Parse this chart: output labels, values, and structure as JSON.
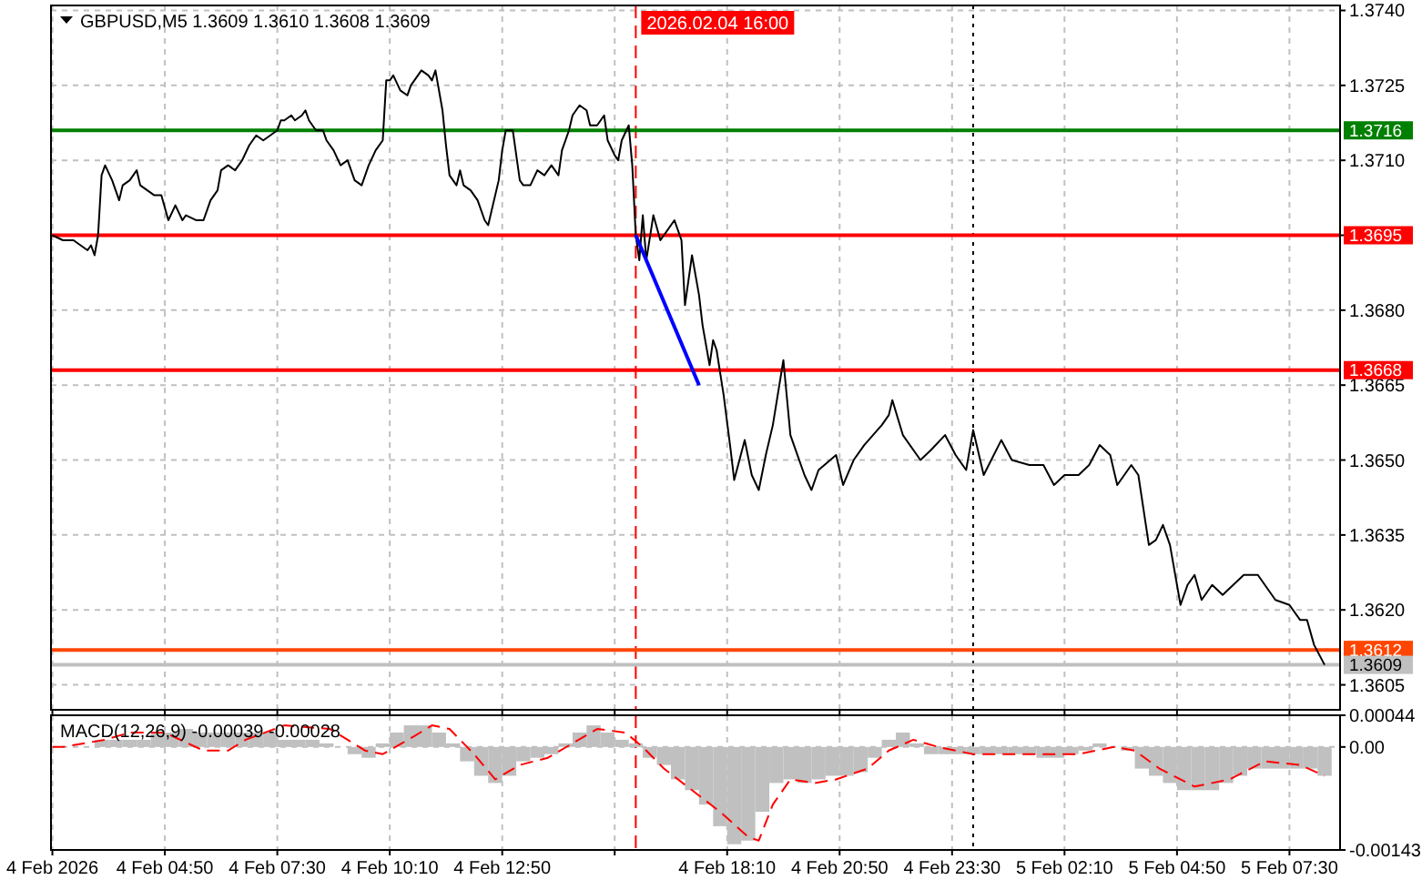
{
  "chart_data": [
    {
      "type": "line",
      "title": "GBPUSD,M5  1.3609 1.3610 1.3608 1.3609",
      "xlim": [
        "2026-02-04T02:08",
        "2026-02-05T08:42"
      ],
      "ylim": [
        1.36,
        1.3741
      ],
      "xticks": [
        {
          "value": "2026-02-04T02:10",
          "label": null
        },
        {
          "value": "2026-02-04T04:50",
          "label": null
        },
        {
          "value": "2026-02-04T07:30",
          "label": null
        },
        {
          "value": "2026-02-04T10:10",
          "label": null
        },
        {
          "value": "2026-02-04T12:50",
          "label": null
        },
        {
          "value": "2026-02-04T15:30",
          "label": null
        },
        {
          "value": "2026-02-04T18:10",
          "label": null
        },
        {
          "value": "2026-02-04T20:50",
          "label": null
        },
        {
          "value": "2026-02-04T23:30",
          "label": null
        },
        {
          "value": "2026-02-05T02:10",
          "label": null
        },
        {
          "value": "2026-02-05T04:50",
          "label": null
        },
        {
          "value": "2026-02-05T07:30",
          "label": null
        }
      ],
      "yticks": [
        1.3605,
        {
          "value": 1.362,
          "label": "1.3620"
        },
        1.3635,
        {
          "value": 1.365,
          "label": "1.3650"
        },
        1.3665,
        {
          "value": 1.368,
          "label": "1.3680"
        },
        {
          "value": 1.3695,
          "label": null
        },
        {
          "value": 1.371,
          "label": "1.3710"
        },
        1.3725,
        {
          "value": 1.374,
          "label": "1.3740"
        }
      ],
      "grid": true,
      "tick_labels": "y",
      "line_style": "solid",
      "series": [
        {
          "color": "#000000",
          "x": [
            "2026-02-04T02:10",
            "2026-02-04T02:25",
            "2026-02-04T02:40",
            "2026-02-04T02:50",
            "2026-02-04T03:00",
            "2026-02-04T03:05",
            "2026-02-04T03:10",
            "2026-02-04T03:15",
            "2026-02-04T03:20",
            "2026-02-04T03:25",
            "2026-02-04T03:35",
            "2026-02-04T03:45",
            "2026-02-04T03:50",
            "2026-02-04T04:00",
            "2026-02-04T04:10",
            "2026-02-04T04:15",
            "2026-02-04T04:25",
            "2026-02-04T04:35",
            "2026-02-04T04:45",
            "2026-02-04T04:55",
            "2026-02-04T05:05",
            "2026-02-04T05:15",
            "2026-02-04T05:20",
            "2026-02-04T05:35",
            "2026-02-04T05:45",
            "2026-02-04T05:55",
            "2026-02-04T06:05",
            "2026-02-04T06:10",
            "2026-02-04T06:20",
            "2026-02-04T06:30",
            "2026-02-04T06:40",
            "2026-02-04T06:50",
            "2026-02-04T07:00",
            "2026-02-04T07:10",
            "2026-02-04T07:20",
            "2026-02-04T07:30",
            "2026-02-04T07:35",
            "2026-02-04T07:40",
            "2026-02-04T07:50",
            "2026-02-04T07:55",
            "2026-02-04T08:05",
            "2026-02-04T08:10",
            "2026-02-04T08:15",
            "2026-02-04T08:25",
            "2026-02-04T08:35",
            "2026-02-04T08:40",
            "2026-02-04T08:50",
            "2026-02-04T09:00",
            "2026-02-04T09:10",
            "2026-02-04T09:20",
            "2026-02-04T09:30",
            "2026-02-04T09:40",
            "2026-02-04T09:50",
            "2026-02-04T10:00",
            "2026-02-04T10:05",
            "2026-02-04T10:10",
            "2026-02-04T10:15",
            "2026-02-04T10:25",
            "2026-02-04T10:35",
            "2026-02-04T10:40",
            "2026-02-04T10:50",
            "2026-02-04T10:55",
            "2026-02-04T11:05",
            "2026-02-04T11:10",
            "2026-02-04T11:15",
            "2026-02-04T11:25",
            "2026-02-04T11:30",
            "2026-02-04T11:35",
            "2026-02-04T11:45",
            "2026-02-04T11:50",
            "2026-02-04T11:55",
            "2026-02-04T12:05",
            "2026-02-04T12:15",
            "2026-02-04T12:25",
            "2026-02-04T12:30",
            "2026-02-04T12:35",
            "2026-02-04T12:45",
            "2026-02-04T12:50",
            "2026-02-04T12:55",
            "2026-02-04T13:05",
            "2026-02-04T13:10",
            "2026-02-04T13:15",
            "2026-02-04T13:20",
            "2026-02-04T13:30",
            "2026-02-04T13:40",
            "2026-02-04T13:50",
            "2026-02-04T14:00",
            "2026-02-04T14:10",
            "2026-02-04T14:15",
            "2026-02-04T14:25",
            "2026-02-04T14:30",
            "2026-02-04T14:40",
            "2026-02-04T14:50",
            "2026-02-04T14:55",
            "2026-02-04T15:05",
            "2026-02-04T15:15",
            "2026-02-04T15:20",
            "2026-02-04T15:30",
            "2026-02-04T15:35",
            "2026-02-04T15:40",
            "2026-02-04T15:50",
            "2026-02-04T15:55",
            "2026-02-04T16:00",
            "2026-02-04T16:05",
            "2026-02-04T16:10",
            "2026-02-04T16:15",
            "2026-02-04T16:25",
            "2026-02-04T16:35",
            "2026-02-04T16:40",
            "2026-02-04T16:55",
            "2026-02-04T17:05",
            "2026-02-04T17:10",
            "2026-02-04T17:20",
            "2026-02-04T17:30",
            "2026-02-04T17:35",
            "2026-02-04T17:45",
            "2026-02-04T17:50",
            "2026-02-04T17:55",
            "2026-02-04T18:05",
            "2026-02-04T18:15",
            "2026-02-04T18:20",
            "2026-02-04T18:35",
            "2026-02-04T18:45",
            "2026-02-04T18:55",
            "2026-02-04T19:05",
            "2026-02-04T19:15",
            "2026-02-04T19:30",
            "2026-02-04T19:40",
            "2026-02-04T20:00",
            "2026-02-04T20:10",
            "2026-02-04T20:20",
            "2026-02-04T20:45",
            "2026-02-04T20:55",
            "2026-02-04T21:10",
            "2026-02-04T21:25",
            "2026-02-04T21:50",
            "2026-02-04T22:00",
            "2026-02-04T22:05",
            "2026-02-04T22:20",
            "2026-02-04T22:45",
            "2026-02-04T23:00",
            "2026-02-04T23:20",
            "2026-02-04T23:35",
            "2026-02-04T23:50",
            "2026-02-05T00:00",
            "2026-02-05T00:15",
            "2026-02-05T00:40",
            "2026-02-05T00:55",
            "2026-02-05T01:20",
            "2026-02-05T01:40",
            "2026-02-05T01:55",
            "2026-02-05T02:10",
            "2026-02-05T02:30",
            "2026-02-05T02:45",
            "2026-02-05T03:00",
            "2026-02-05T03:15",
            "2026-02-05T03:25",
            "2026-02-05T03:45",
            "2026-02-05T03:55",
            "2026-02-05T04:10",
            "2026-02-05T04:20",
            "2026-02-05T04:30",
            "2026-02-05T04:40",
            "2026-02-05T04:55",
            "2026-02-05T05:05",
            "2026-02-05T05:15",
            "2026-02-05T05:25",
            "2026-02-05T05:40",
            "2026-02-05T05:55",
            "2026-02-05T06:25",
            "2026-02-05T06:45",
            "2026-02-05T07:10",
            "2026-02-05T07:30",
            "2026-02-05T07:45",
            "2026-02-05T07:55",
            "2026-02-05T08:05",
            "2026-02-05T08:20"
          ],
          "values": [
            1.3695,
            1.3694,
            1.3694,
            1.3693,
            1.3692,
            1.3693,
            1.3691,
            1.3695,
            1.3707,
            1.3709,
            1.3706,
            1.3702,
            1.3705,
            1.3706,
            1.3708,
            1.3705,
            1.3704,
            1.3703,
            1.3703,
            1.3698,
            1.3701,
            1.3698,
            1.3699,
            1.3698,
            1.3698,
            1.3702,
            1.3704,
            1.3708,
            1.3709,
            1.3708,
            1.371,
            1.3713,
            1.3715,
            1.3714,
            1.3715,
            1.3716,
            1.3718,
            1.3718,
            1.3719,
            1.3718,
            1.3719,
            1.372,
            1.3718,
            1.3716,
            1.3716,
            1.3714,
            1.3712,
            1.3709,
            1.371,
            1.3706,
            1.3705,
            1.3709,
            1.3712,
            1.3714,
            1.3726,
            1.3726,
            1.3727,
            1.3724,
            1.3723,
            1.3725,
            1.3727,
            1.3728,
            1.3727,
            1.3726,
            1.3728,
            1.372,
            1.3713,
            1.3707,
            1.3705,
            1.3708,
            1.3705,
            1.3704,
            1.3702,
            1.3698,
            1.3697,
            1.37,
            1.3706,
            1.3712,
            1.3716,
            1.3716,
            1.3711,
            1.3706,
            1.3705,
            1.3705,
            1.3708,
            1.3707,
            1.3709,
            1.3707,
            1.3712,
            1.3716,
            1.3719,
            1.3721,
            1.372,
            1.3717,
            1.3717,
            1.3719,
            1.3714,
            1.3711,
            1.371,
            1.3714,
            1.3717,
            1.3709,
            1.3695,
            1.369,
            1.3699,
            1.369,
            1.3699,
            1.3694,
            1.3695,
            1.3698,
            1.3694,
            1.3681,
            1.3691,
            1.3683,
            1.3677,
            1.3669,
            1.3674,
            1.3672,
            1.3663,
            1.3652,
            1.3646,
            1.3654,
            1.3647,
            1.3644,
            1.3651,
            1.3657,
            1.367,
            1.3655,
            1.3647,
            1.3644,
            1.3648,
            1.3651,
            1.3645,
            1.365,
            1.3653,
            1.3657,
            1.3659,
            1.3662,
            1.3655,
            1.365,
            1.3652,
            1.3655,
            1.3651,
            1.3648,
            1.3656,
            1.3647,
            1.3654,
            1.365,
            1.3649,
            1.3649,
            1.3645,
            1.3647,
            1.3647,
            1.3649,
            1.3653,
            1.3651,
            1.3645,
            1.3649,
            1.3647,
            1.3633,
            1.3634,
            1.3637,
            1.3633,
            1.3621,
            1.3625,
            1.3627,
            1.3622,
            1.3625,
            1.3623,
            1.3627,
            1.3627,
            1.3622,
            1.3621,
            1.3618,
            1.3618,
            1.3613,
            1.3609
          ]
        },
        {
          "type": "line",
          "color": "#0000ff",
          "x": [
            "2026-02-04T16:00",
            "2026-02-04T17:30"
          ],
          "values": [
            1.3695,
            1.3665
          ]
        }
      ],
      "ref_lines": [
        {
          "axis": "y",
          "value": 1.3716,
          "label": "1.3716",
          "color": "#008000"
        },
        {
          "axis": "y",
          "value": 1.3695,
          "label": "1.3695",
          "color": "#ff0000"
        },
        {
          "axis": "y",
          "value": 1.3668,
          "label": "1.3668",
          "color": "#ff0000"
        },
        {
          "axis": "y",
          "value": 1.3612,
          "label": "1.3612",
          "color": "#ff4500"
        },
        {
          "axis": "y",
          "value": 1.3609,
          "label": "1.3609",
          "color": "#c0c0c0"
        },
        {
          "axis": "x",
          "value": "2026-02-04T16:00",
          "label": "2026.02.04 16:00",
          "color": "#ff0000",
          "line_style": "dashed"
        },
        {
          "axis": "x",
          "value": "2026-02-05T00:00",
          "color": "#000000",
          "line_style": "dotted"
        }
      ]
    },
    {
      "type": "bar",
      "title": "MACD(12,26,9) -0.00039 -0.00028",
      "xlim": [
        "2026-02-04T02:08",
        "2026-02-05T08:42"
      ],
      "ylim": [
        -0.00143,
        0.00044
      ],
      "xticks": [
        {
          "value": "2026-02-04T02:10",
          "label": "4 Feb 2026"
        },
        {
          "value": "2026-02-04T04:50",
          "label": "4 Feb 04:50"
        },
        {
          "value": "2026-02-04T07:30",
          "label": "4 Feb 07:30"
        },
        {
          "value": "2026-02-04T10:10",
          "label": "4 Feb 10:10"
        },
        {
          "value": "2026-02-04T12:50",
          "label": "4 Feb 12:50"
        },
        {
          "value": "2026-02-04T15:30",
          "label": null
        },
        {
          "value": "2026-02-04T18:10",
          "label": "4 Feb 18:10"
        },
        {
          "value": "2026-02-04T20:50",
          "label": "4 Feb 20:50"
        },
        {
          "value": "2026-02-04T23:30",
          "label": "4 Feb 23:30"
        },
        {
          "value": "2026-02-05T02:10",
          "label": "5 Feb 02:10"
        },
        {
          "value": "2026-02-05T04:50",
          "label": "5 Feb 04:50"
        },
        {
          "value": "2026-02-05T07:30",
          "label": "5 Feb 07:30"
        }
      ],
      "yticks": [
        -0.00143,
        {
          "value": 0,
          "label": "0.00"
        },
        0.00044
      ],
      "grid": true,
      "series": [
        {
          "color": "#c0c0c0",
          "x": [
            "2026-02-04T02:20",
            "2026-02-04T02:40",
            "2026-02-04T03:00",
            "2026-02-04T03:20",
            "2026-02-04T03:40",
            "2026-02-04T04:00",
            "2026-02-04T04:20",
            "2026-02-04T04:40",
            "2026-02-04T05:00",
            "2026-02-04T05:20",
            "2026-02-04T05:40",
            "2026-02-04T06:00",
            "2026-02-04T06:20",
            "2026-02-04T06:40",
            "2026-02-04T07:00",
            "2026-02-04T07:20",
            "2026-02-04T07:40",
            "2026-02-04T08:00",
            "2026-02-04T08:20",
            "2026-02-04T08:40",
            "2026-02-04T09:00",
            "2026-02-04T09:20",
            "2026-02-04T09:40",
            "2026-02-04T10:00",
            "2026-02-04T10:20",
            "2026-02-04T10:40",
            "2026-02-04T11:00",
            "2026-02-04T11:20",
            "2026-02-04T11:40",
            "2026-02-04T12:00",
            "2026-02-04T12:20",
            "2026-02-04T12:40",
            "2026-02-04T13:00",
            "2026-02-04T13:20",
            "2026-02-04T13:40",
            "2026-02-04T14:00",
            "2026-02-04T14:20",
            "2026-02-04T14:40",
            "2026-02-04T15:00",
            "2026-02-04T15:20",
            "2026-02-04T15:40",
            "2026-02-04T16:00",
            "2026-02-04T16:20",
            "2026-02-04T16:40",
            "2026-02-04T17:00",
            "2026-02-04T17:20",
            "2026-02-04T17:40",
            "2026-02-04T18:00",
            "2026-02-04T18:20",
            "2026-02-04T18:40",
            "2026-02-04T19:00",
            "2026-02-04T19:20",
            "2026-02-04T19:40",
            "2026-02-04T20:00",
            "2026-02-04T20:20",
            "2026-02-04T20:40",
            "2026-02-04T21:00",
            "2026-02-04T21:20",
            "2026-02-04T21:40",
            "2026-02-04T22:00",
            "2026-02-04T22:20",
            "2026-02-04T22:40",
            "2026-02-04T23:00",
            "2026-02-04T23:20",
            "2026-02-04T23:40",
            "2026-02-05T00:00",
            "2026-02-05T00:20",
            "2026-02-05T00:40",
            "2026-02-05T01:00",
            "2026-02-05T01:20",
            "2026-02-05T01:40",
            "2026-02-05T02:00",
            "2026-02-05T02:20",
            "2026-02-05T02:40",
            "2026-02-05T03:00",
            "2026-02-05T03:20",
            "2026-02-05T03:40",
            "2026-02-05T04:00",
            "2026-02-05T04:20",
            "2026-02-05T04:40",
            "2026-02-05T05:00",
            "2026-02-05T05:20",
            "2026-02-05T05:40",
            "2026-02-05T06:00",
            "2026-02-05T06:20",
            "2026-02-05T06:40",
            "2026-02-05T07:00",
            "2026-02-05T07:20",
            "2026-02-05T07:40",
            "2026-02-05T08:00",
            "2026-02-05T08:20"
          ],
          "values": [
            0,
            0,
            0,
            0.0001,
            0.0001,
            0.0001,
            0.0001,
            0.0002,
            0.0002,
            0.00025,
            0.0002,
            0.0002,
            0.0002,
            0.0002,
            0.0002,
            0.0002,
            0.0001,
            0.0001,
            0.0001,
            5e-05,
            0,
            -0.0001,
            -0.00015,
            5e-05,
            0.0002,
            0.0003,
            0.0003,
            0.0002,
            5e-05,
            -0.0002,
            -0.0004,
            -0.0005,
            -0.0004,
            -0.0002,
            -0.00015,
            -0.0001,
            5e-05,
            0.0002,
            0.0003,
            0.0002,
            0.0001,
            5e-05,
            -0.00015,
            -0.00025,
            -0.00045,
            -0.0006,
            -0.0008,
            -0.0011,
            -0.00135,
            -0.0013,
            -0.0009,
            -0.0005,
            -0.00045,
            -0.0005,
            -0.00045,
            -0.0004,
            -0.0004,
            -0.00035,
            -0.00015,
            0.0001,
            0.0002,
            5e-05,
            -0.0001,
            -0.0001,
            -0.0001,
            -0.0001,
            -0.0001,
            -0.0001,
            -0.0001,
            -0.0001,
            -0.00015,
            -0.00015,
            -0.0001,
            -5e-05,
            5e-05,
            0,
            -5e-05,
            -0.0003,
            -0.0004,
            -0.0005,
            -0.0006,
            -0.0006,
            -0.0006,
            -0.0005,
            -0.0004,
            -0.0003,
            -0.0003,
            -0.0003,
            -0.0003,
            -0.0003,
            -0.0004
          ]
        },
        {
          "type": "line",
          "color": "#ff0000",
          "line_style": "dashed",
          "x": [
            "2026-02-04T02:10",
            "2026-02-04T02:25",
            "2026-02-04T03:25",
            "2026-02-04T04:00",
            "2026-02-04T04:50",
            "2026-02-04T05:45",
            "2026-02-04T06:20",
            "2026-02-04T06:45",
            "2026-02-04T07:40",
            "2026-02-04T08:45",
            "2026-02-04T09:35",
            "2026-02-04T10:00",
            "2026-02-04T10:45",
            "2026-02-04T11:10",
            "2026-02-04T11:35",
            "2026-02-04T12:10",
            "2026-02-04T12:40",
            "2026-02-04T13:15",
            "2026-02-04T13:55",
            "2026-02-04T14:30",
            "2026-02-04T15:05",
            "2026-02-04T15:45",
            "2026-02-04T16:10",
            "2026-02-04T16:40",
            "2026-02-04T17:20",
            "2026-02-04T18:00",
            "2026-02-04T18:40",
            "2026-02-04T18:55",
            "2026-02-04T19:15",
            "2026-02-04T19:40",
            "2026-02-04T20:15",
            "2026-02-04T20:45",
            "2026-02-04T21:30",
            "2026-02-04T22:00",
            "2026-02-04T22:35",
            "2026-02-04T23:10",
            "2026-02-05T00:00",
            "2026-02-05T01:05",
            "2026-02-05T02:30",
            "2026-02-05T03:20",
            "2026-02-05T03:50",
            "2026-02-05T04:25",
            "2026-02-05T05:15",
            "2026-02-05T06:05",
            "2026-02-05T06:55",
            "2026-02-05T07:45",
            "2026-02-05T08:20"
          ],
          "values": [
            0,
            0,
            0.0001,
            0.0002,
            0.0002,
            -5e-05,
            -5e-05,
            0.0001,
            0.0003,
            0.00025,
            -5e-05,
            -0.0001,
            0.00015,
            0.0003,
            0.00025,
            -0.0001,
            -0.00045,
            -0.00025,
            -0.00015,
            5e-05,
            0.00025,
            0.0002,
            0,
            -0.0003,
            -0.0006,
            -0.0009,
            -0.00125,
            -0.0013,
            -0.0008,
            -0.00045,
            -0.0005,
            -0.00045,
            -0.0003,
            -5e-05,
            0.0001,
            0,
            -0.0001,
            -0.0001,
            -0.0001,
            0,
            -5e-05,
            -0.0003,
            -0.00055,
            -0.00045,
            -0.0002,
            -0.00025,
            -0.0004
          ]
        }
      ],
      "ref_lines": [
        {
          "axis": "x",
          "value": "2026-02-04T16:00",
          "color": "#ff0000",
          "line_style": "dashed"
        },
        {
          "axis": "x",
          "value": "2026-02-05T00:00",
          "color": "#000000",
          "line_style": "dotted"
        }
      ]
    }
  ]
}
